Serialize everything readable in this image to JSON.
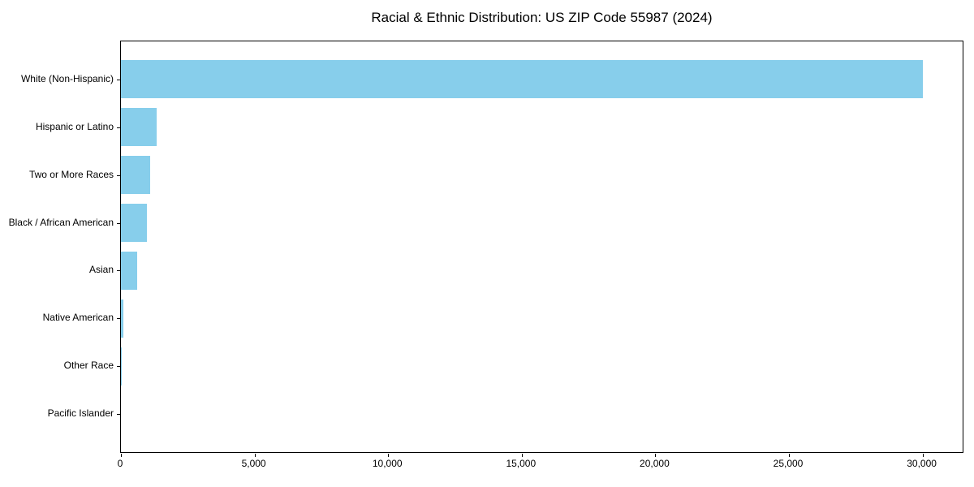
{
  "chart_data": {
    "type": "bar",
    "orientation": "horizontal",
    "title": "Racial & Ethnic Distribution: US ZIP Code 55987 (2024)",
    "categories": [
      "White (Non-Hispanic)",
      "Hispanic or Latino",
      "Two or More Races",
      "Black / African American",
      "Asian",
      "Native American",
      "Other Race",
      "Pacific Islander"
    ],
    "values": [
      30000,
      1350,
      1100,
      970,
      600,
      90,
      20,
      10
    ],
    "xlabel": "",
    "ylabel": "",
    "xlim": [
      0,
      31500
    ],
    "x_ticks": [
      0,
      5000,
      10000,
      15000,
      20000,
      25000,
      30000
    ],
    "x_tick_labels": [
      "0",
      "5,000",
      "10,000",
      "15,000",
      "20,000",
      "25,000",
      "30,000"
    ],
    "bar_color": "#87CEEB",
    "background_color": "#ffffff",
    "axis_color": "#000000",
    "grid": false,
    "legend": null
  }
}
